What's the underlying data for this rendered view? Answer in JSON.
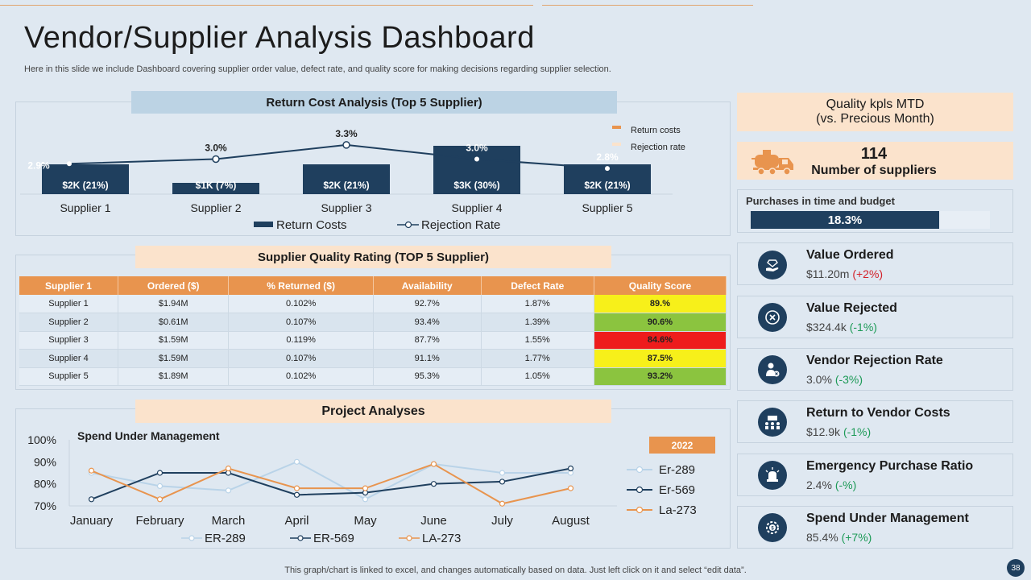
{
  "page": {
    "title": "Vendor/Supplier Analysis Dashboard",
    "subtitle": "Here in this slide we include Dashboard covering supplier order value, defect rate, and quality score for making decisions regarding supplier selection.",
    "footer": "This graph/chart is linked to excel,  and changes automatically based on data. Just left click on it and select “edit data”.",
    "page_number": "38"
  },
  "return_cost": {
    "banner": "Return Cost Analysis (Top 5 Supplier)",
    "legend_top": [
      "Return costs",
      "Rejection rate"
    ],
    "legend_bottom": [
      "Return Costs",
      "Rejection Rate"
    ]
  },
  "quality_rating": {
    "banner": "Supplier Quality Rating (TOP 5 Supplier)",
    "headers": [
      "Supplier 1",
      "Ordered ($)",
      "% Returned ($)",
      "Availability",
      "Defect Rate",
      "Quality Score"
    ],
    "rows": [
      [
        "Supplier 1",
        "$1.94M",
        "0.102%",
        "92.7%",
        "1.87%",
        "89.%"
      ],
      [
        "Supplier 2",
        "$0.61M",
        "0.107%",
        "93.4%",
        "1.39%",
        "90.6%"
      ],
      [
        "Supplier 3",
        "$1.59M",
        "0.119%",
        "87.7%",
        "1.55%",
        "84.6%"
      ],
      [
        "Supplier 4",
        "$1.59M",
        "0.107%",
        "91.1%",
        "1.77%",
        "87.5%"
      ],
      [
        "Supplier 5",
        "$1.89M",
        "0.102%",
        "95.3%",
        "1.05%",
        "93.2%"
      ]
    ],
    "score_colors": [
      "#f7f01a",
      "#8bc43f",
      "#ee1c1c",
      "#f7f01a",
      "#8bc43f"
    ]
  },
  "project": {
    "banner": "Project Analyses",
    "chart_title": "Spend Under Management",
    "year_badge": "2022"
  },
  "kpis": {
    "quality_title_line1": "Quality  kpls MTD",
    "quality_title_line2": "(vs. Precious Month)",
    "suppliers_count": "114",
    "suppliers_label": "Number of suppliers",
    "purchases_label": "Purchases  in time and budget",
    "purchases_value": "18.3%",
    "items": [
      {
        "title": "Value Ordered",
        "value": "$11.20m",
        "change": "(+2%)"
      },
      {
        "title": "Value Rejected",
        "value": "$324.4k",
        "change": "(-1%)"
      },
      {
        "title": "Vendor Rejection Rate",
        "value": "3.0%",
        "change": "(-3%)"
      },
      {
        "title": "Return to Vendor Costs",
        "value": "$12.9k",
        "change": "(-1%)"
      },
      {
        "title": "Emergency Purchase Ratio",
        "value": "2.4%",
        "change": "(-%)"
      },
      {
        "title": "Spend Under Management",
        "value": "85.4%",
        "change": "(+7%)"
      }
    ]
  },
  "colors": {
    "navy": "#1f3f5e",
    "orange": "#e8944e",
    "lightblue": "#b9d3e8",
    "peach": "#fbe3cc"
  },
  "chart_data": [
    {
      "type": "bar",
      "title": "Return Cost Analysis (Top 5 Supplier)",
      "categories": [
        "Supplier 1",
        "Supplier 2",
        "Supplier 3",
        "Supplier 4",
        "Supplier 5"
      ],
      "series": [
        {
          "name": "Return Costs",
          "kind": "bar",
          "values": [
            2,
            1,
            2,
            3,
            2
          ],
          "labels": [
            "$2K (21%)",
            "$1K (7%)",
            "$2K (21%)",
            "$3K (30%)",
            "$2K (21%)"
          ]
        },
        {
          "name": "Rejection Rate",
          "kind": "line",
          "values": [
            2.9,
            3.0,
            3.3,
            3.0,
            2.8
          ],
          "labels": [
            "2.9%",
            "3.0%",
            "3.3%",
            "3.0%",
            "2.8%"
          ]
        }
      ]
    },
    {
      "type": "line",
      "title": "Spend Under Management",
      "categories": [
        "January",
        "February",
        "March",
        "April",
        "May",
        "June",
        "July",
        "August"
      ],
      "yticks": [
        "100%",
        "90%",
        "80%",
        "70%"
      ],
      "ylim": [
        70,
        100
      ],
      "series": [
        {
          "name": "Er-289",
          "bottom_name": "ER-289",
          "color": "#b9d3e8",
          "values": [
            85,
            79,
            77,
            90,
            73,
            89,
            85,
            85
          ]
        },
        {
          "name": "Er-569",
          "bottom_name": "ER-569",
          "color": "#1f3f5e",
          "values": [
            73,
            85,
            85,
            75,
            76,
            80,
            81,
            87
          ]
        },
        {
          "name": "La-273",
          "bottom_name": "LA-273",
          "color": "#e8944e",
          "values": [
            86,
            73,
            87,
            78,
            78,
            89,
            71,
            78
          ]
        }
      ]
    }
  ]
}
